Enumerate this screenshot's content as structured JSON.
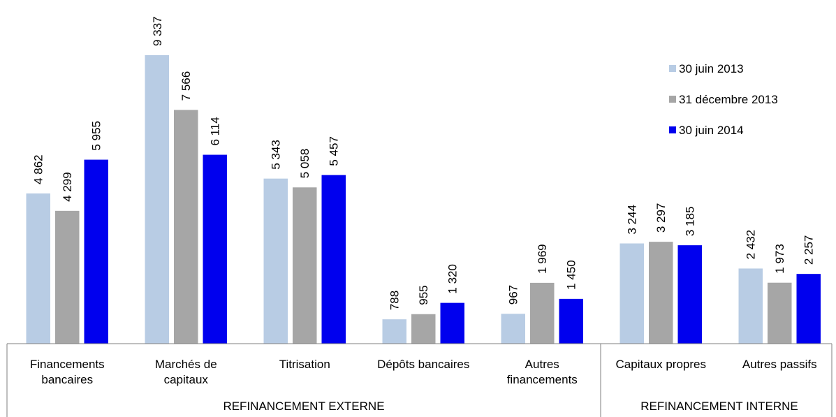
{
  "chart_data": {
    "type": "bar",
    "categories": [
      "Financements bancaires",
      "Marchés de capitaux",
      "Titrisation",
      "Dépôts bancaires",
      "Autres financements",
      "Capitaux propres",
      "Autres passifs"
    ],
    "category_lines": [
      [
        "Financements",
        "bancaires"
      ],
      [
        "Marchés de",
        "capitaux"
      ],
      [
        "Titrisation"
      ],
      [
        "Dépôts bancaires"
      ],
      [
        "Autres",
        "financements"
      ],
      [
        "Capitaux propres"
      ],
      [
        "Autres passifs"
      ]
    ],
    "groups": [
      {
        "label": "REFINANCEMENT EXTERNE",
        "categories": [
          "Financements bancaires",
          "Marchés de capitaux",
          "Titrisation",
          "Dépôts bancaires",
          "Autres financements"
        ]
      },
      {
        "label": "REFINANCEMENT INTERNE",
        "categories": [
          "Capitaux propres",
          "Autres passifs"
        ]
      }
    ],
    "series": [
      {
        "name": "30 juin 2013",
        "color": "#b8cce4",
        "values": [
          4862,
          9337,
          5343,
          788,
          967,
          3244,
          2432
        ],
        "labels": [
          "4 862",
          "9 337",
          "5 343",
          "788",
          "967",
          "3 244",
          "2 432"
        ]
      },
      {
        "name": "31 décembre 2013",
        "color": "#a6a6a6",
        "values": [
          4299,
          7566,
          5058,
          955,
          1969,
          3297,
          1973
        ],
        "labels": [
          "4 299",
          "7 566",
          "5 058",
          "955",
          "1 969",
          "3 297",
          "1 973"
        ]
      },
      {
        "name": "30 juin 2014",
        "color": "#0000ee",
        "values": [
          5955,
          6114,
          5457,
          1320,
          1450,
          3185,
          2257
        ],
        "labels": [
          "5 955",
          "6 114",
          "5 457",
          "1 320",
          "1 450",
          "3 185",
          "2 257"
        ]
      }
    ],
    "title": "",
    "xlabel": "",
    "ylabel": "",
    "ylim": [
      0,
      9337
    ],
    "grid": false,
    "legend_position": "top-right"
  }
}
